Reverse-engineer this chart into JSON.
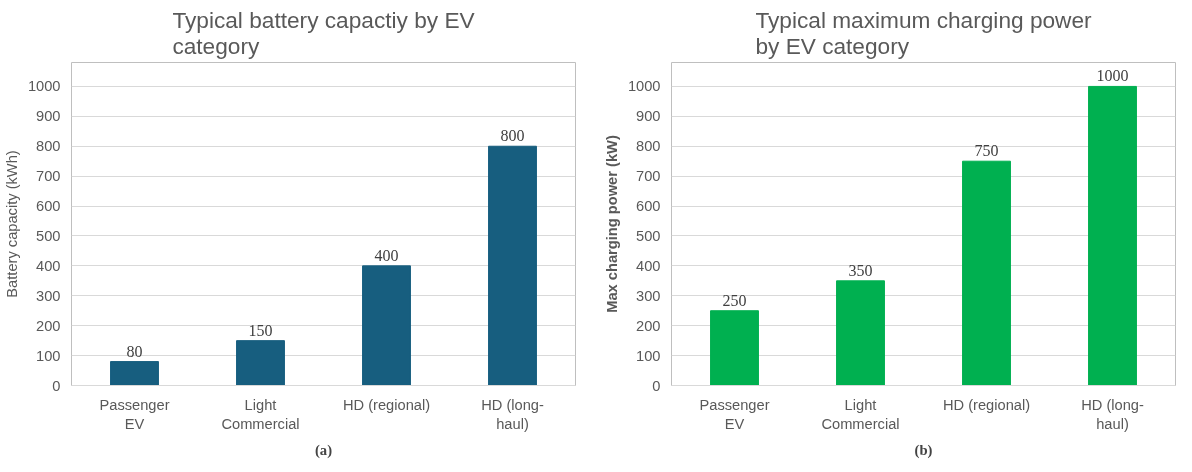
{
  "chart_data": [
    {
      "type": "bar",
      "title": "Typical battery capactiy by EV category",
      "ylabel": "Battery capacity (kWh)",
      "categories": [
        "Passenger\nEV",
        "Light\nCommercial",
        "HD (regional)",
        "HD (long-\nhaul)"
      ],
      "values": [
        80,
        150,
        400,
        800
      ],
      "color": "#175e7f",
      "ylim": [
        0,
        1080
      ],
      "yticks": [
        0,
        100,
        200,
        300,
        400,
        500,
        600,
        700,
        800,
        900,
        1000
      ],
      "grid": "y",
      "data_labels": true,
      "annotations": [
        "(a)"
      ]
    },
    {
      "type": "bar",
      "title": "Typical maximum charging power by EV category",
      "ylabel": "Max charging power (kW)",
      "categories": [
        "Passenger\nEV",
        "Light\nCommercial",
        "HD (regional)",
        "HD (long-\nhaul)"
      ],
      "values": [
        250,
        350,
        750,
        1000
      ],
      "color": "#00b050",
      "ylim": [
        0,
        1080
      ],
      "yticks": [
        0,
        100,
        200,
        300,
        400,
        500,
        600,
        700,
        800,
        900,
        1000
      ],
      "grid": "y",
      "data_labels": true,
      "annotations": [
        "(b)"
      ]
    }
  ]
}
